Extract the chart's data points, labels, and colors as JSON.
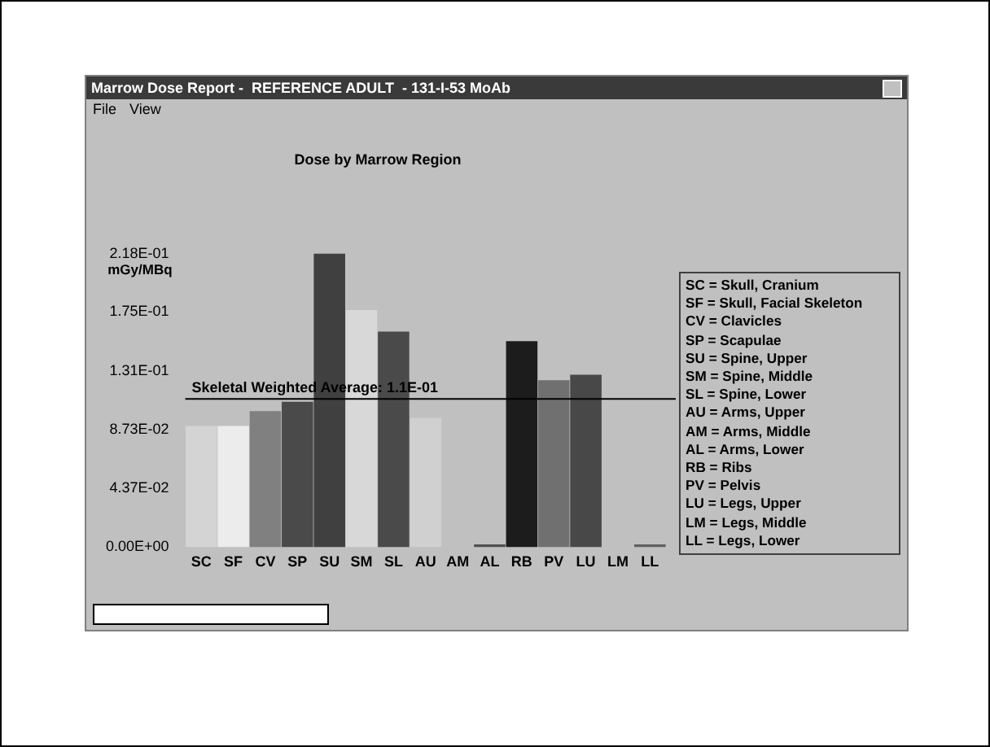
{
  "chart_data": {
    "type": "bar",
    "title": "Dose by Marrow Region",
    "ylabel": "mGy/MBq",
    "categories": [
      "SC",
      "SF",
      "CV",
      "SP",
      "SU",
      "SM",
      "SL",
      "AU",
      "AM",
      "AL",
      "RB",
      "PV",
      "LU",
      "LM",
      "LL"
    ],
    "values": [
      0.09,
      0.09,
      0.101,
      0.108,
      0.218,
      0.176,
      0.16,
      0.096,
      null,
      0.002,
      0.153,
      0.124,
      0.128,
      null,
      0.002
    ],
    "colors": [
      "#d4d4d4",
      "#ececec",
      "#808080",
      "#4a4a4a",
      "#404040",
      "#d8d8d8",
      "#4a4a4a",
      "#d0d0d0",
      "#d0d0d0",
      "#505050",
      "#1c1c1c",
      "#707070",
      "#484848",
      "#d0d0d0",
      "#606060"
    ],
    "ylim": [
      0,
      0.218
    ],
    "yticks": [
      {
        "value": 0,
        "label": "0.00E+00"
      },
      {
        "value": 0.0437,
        "label": "4.37E-02"
      },
      {
        "value": 0.0873,
        "label": "8.73E-02"
      },
      {
        "value": 0.131,
        "label": "1.31E-01"
      },
      {
        "value": 0.175,
        "label": "1.75E-01"
      },
      {
        "value": 0.218,
        "label": "2.18E-01"
      }
    ],
    "ref_lines": [
      {
        "axis": "y",
        "value": 0.11,
        "color": "#000000"
      }
    ],
    "grid": false,
    "legend": false,
    "annotations": [
      "Marrow Dose Report -  REFERENCE ADULT  - 131-I-53 MoAb",
      "File",
      "View",
      "SC = Skull, Cranium",
      "SF = Skull, Facial Skeleton",
      "CV = Clavicles",
      "SP = Scapulae",
      "SU = Spine, Upper",
      "SM = Spine, Middle",
      "SL = Spine, Lower",
      "AU = Arms, Upper",
      "AM = Arms, Middle",
      "AL = Arms, Lower",
      "RB = Ribs",
      "PV = Pelvis",
      "LU = Legs, Upper",
      "LM = Legs, Middle",
      "LL = Legs, Lower",
      {
        "text": "Skeletal Weighted Average: 1.1E-01",
        "y": 0.11
      }
    ]
  }
}
